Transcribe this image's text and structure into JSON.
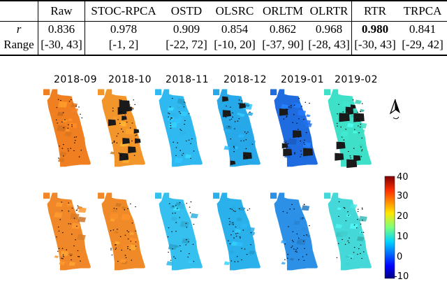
{
  "table": {
    "headers": [
      "Raw",
      "STOC-RPCA",
      "OSTD",
      "OLSRC",
      "ORLTM",
      "OLRTR",
      "RTR",
      "TRPCA"
    ],
    "row_r": {
      "label": "r",
      "values": [
        "0.836",
        "0.978",
        "0.909",
        "0.854",
        "0.862",
        "0.968",
        "0.980",
        "0.841"
      ]
    },
    "row_range": {
      "label": "Range",
      "values": [
        "[-30, 43]",
        "[-1, 2]",
        "[-22, 72]",
        "[-10, 20]",
        "[-37, 90]",
        "[-28, 43]",
        "[-30, 43]",
        "[-29, 42]"
      ]
    }
  },
  "figure": {
    "months": [
      "2018-09",
      "2018-10",
      "2018-11",
      "2018-12",
      "2019-01",
      "2019-02"
    ],
    "colorbar": {
      "ticks": [
        "40",
        "30",
        "20",
        "10",
        "0",
        "-10"
      ],
      "min": -10,
      "max": 40
    },
    "top_row_colors": [
      "#f07f22",
      "#f2952b",
      "#2fb9f0",
      "#27a8e8",
      "#1f6be0",
      "#3fe0c8"
    ],
    "bottom_row_colors": [
      "#f0882a",
      "#f08a28",
      "#35c0f0",
      "#2ab0ea",
      "#2c90e6",
      "#45d8d8"
    ],
    "compass_icon": "north-arrow-icon"
  }
}
